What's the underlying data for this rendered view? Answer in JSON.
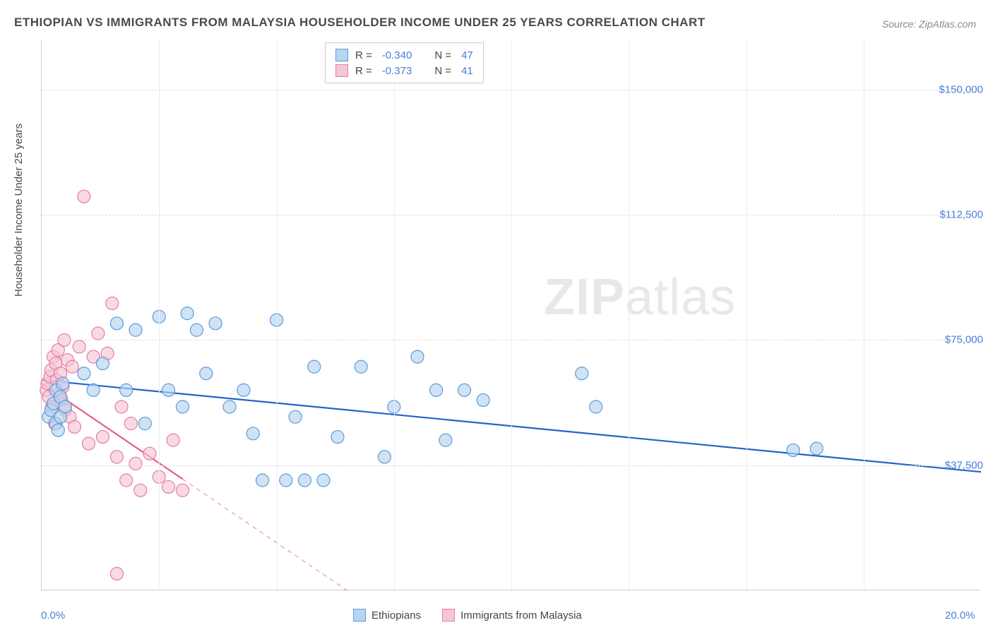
{
  "title": "ETHIOPIAN VS IMMIGRANTS FROM MALAYSIA HOUSEHOLDER INCOME UNDER 25 YEARS CORRELATION CHART",
  "source_label": "Source: ZipAtlas.com",
  "watermark": {
    "zip": "ZIP",
    "atlas": "atlas"
  },
  "y_axis_label": "Householder Income Under 25 years",
  "chart": {
    "type": "scatter",
    "background_color": "#ffffff",
    "grid_color": "#dddddd",
    "axis_color": "#cccccc",
    "x_range": [
      0,
      20
    ],
    "y_range": [
      0,
      165000
    ],
    "x_ticks": [
      {
        "value": 0,
        "label": "0.0%"
      },
      {
        "value": 20,
        "label": "20.0%"
      }
    ],
    "x_minor_ticks": [
      2.5,
      5,
      7.5,
      10,
      12.5,
      15,
      17.5
    ],
    "y_ticks": [
      {
        "value": 37500,
        "label": "$37,500"
      },
      {
        "value": 75000,
        "label": "$75,000"
      },
      {
        "value": 112500,
        "label": "$112,500"
      },
      {
        "value": 150000,
        "label": "$150,000"
      }
    ],
    "series": [
      {
        "id": "ethiopians",
        "label": "Ethiopians",
        "marker_fill": "#b7d4f0",
        "marker_stroke": "#5a9bd8",
        "marker_opacity": 0.65,
        "marker_radius": 9,
        "line_color": "#2563c9",
        "line_width": 2.2,
        "r_value": "-0.340",
        "n_value": "47",
        "trend": {
          "x1": 0,
          "y1": 63000,
          "x2": 20,
          "y2": 35500,
          "dashed_from_x": null
        },
        "points": [
          [
            0.15,
            52000
          ],
          [
            0.2,
            54000
          ],
          [
            0.25,
            56000
          ],
          [
            0.3,
            50000
          ],
          [
            0.3,
            60000
          ],
          [
            0.35,
            48000
          ],
          [
            0.4,
            58000
          ],
          [
            0.4,
            52000
          ],
          [
            0.45,
            62000
          ],
          [
            0.5,
            55000
          ],
          [
            0.9,
            65000
          ],
          [
            1.1,
            60000
          ],
          [
            1.3,
            68000
          ],
          [
            1.6,
            80000
          ],
          [
            1.8,
            60000
          ],
          [
            2.0,
            78000
          ],
          [
            2.2,
            50000
          ],
          [
            2.5,
            82000
          ],
          [
            2.7,
            60000
          ],
          [
            3.0,
            55000
          ],
          [
            3.1,
            83000
          ],
          [
            3.3,
            78000
          ],
          [
            3.5,
            65000
          ],
          [
            3.7,
            80000
          ],
          [
            4.0,
            55000
          ],
          [
            4.3,
            60000
          ],
          [
            4.5,
            47000
          ],
          [
            4.7,
            33000
          ],
          [
            5.0,
            81000
          ],
          [
            5.2,
            33000
          ],
          [
            5.4,
            52000
          ],
          [
            5.6,
            33000
          ],
          [
            5.8,
            67000
          ],
          [
            6.0,
            33000
          ],
          [
            6.3,
            46000
          ],
          [
            6.8,
            67000
          ],
          [
            7.3,
            40000
          ],
          [
            7.5,
            55000
          ],
          [
            8.0,
            70000
          ],
          [
            8.4,
            60000
          ],
          [
            8.6,
            45000
          ],
          [
            9.0,
            60000
          ],
          [
            9.4,
            57000
          ],
          [
            11.5,
            65000
          ],
          [
            11.8,
            55000
          ],
          [
            16.0,
            42000
          ],
          [
            16.5,
            42500
          ]
        ]
      },
      {
        "id": "malaysia",
        "label": "Immigrants from Malaysia",
        "marker_fill": "#f5c6d6",
        "marker_stroke": "#e77ba3",
        "marker_opacity": 0.65,
        "marker_radius": 9,
        "line_color": "#e85a8a",
        "line_width": 2.2,
        "r_value": "-0.373",
        "n_value": "41",
        "trend": {
          "x1": 0,
          "y1": 62000,
          "x2": 6.5,
          "y2": 0,
          "dashed_from_x": 3.0
        },
        "points": [
          [
            0.1,
            60000
          ],
          [
            0.12,
            62000
          ],
          [
            0.15,
            58000
          ],
          [
            0.18,
            64000
          ],
          [
            0.2,
            66000
          ],
          [
            0.22,
            55000
          ],
          [
            0.25,
            70000
          ],
          [
            0.28,
            50000
          ],
          [
            0.3,
            68000
          ],
          [
            0.32,
            63000
          ],
          [
            0.35,
            72000
          ],
          [
            0.38,
            59000
          ],
          [
            0.4,
            65000
          ],
          [
            0.42,
            57000
          ],
          [
            0.45,
            61000
          ],
          [
            0.48,
            75000
          ],
          [
            0.5,
            54000
          ],
          [
            0.55,
            69000
          ],
          [
            0.6,
            52000
          ],
          [
            0.65,
            67000
          ],
          [
            0.7,
            49000
          ],
          [
            0.8,
            73000
          ],
          [
            0.9,
            118000
          ],
          [
            1.0,
            44000
          ],
          [
            1.1,
            70000
          ],
          [
            1.2,
            77000
          ],
          [
            1.3,
            46000
          ],
          [
            1.4,
            71000
          ],
          [
            1.5,
            86000
          ],
          [
            1.6,
            40000
          ],
          [
            1.7,
            55000
          ],
          [
            1.8,
            33000
          ],
          [
            1.9,
            50000
          ],
          [
            2.0,
            38000
          ],
          [
            2.1,
            30000
          ],
          [
            2.3,
            41000
          ],
          [
            2.5,
            34000
          ],
          [
            2.7,
            31000
          ],
          [
            2.8,
            45000
          ],
          [
            3.0,
            30000
          ],
          [
            1.6,
            5000
          ]
        ]
      }
    ]
  },
  "legend_top": {
    "r_label": "R =",
    "n_label": "N ="
  },
  "legend_bottom": {
    "series1": "Ethiopians",
    "series2": "Immigrants from Malaysia"
  }
}
